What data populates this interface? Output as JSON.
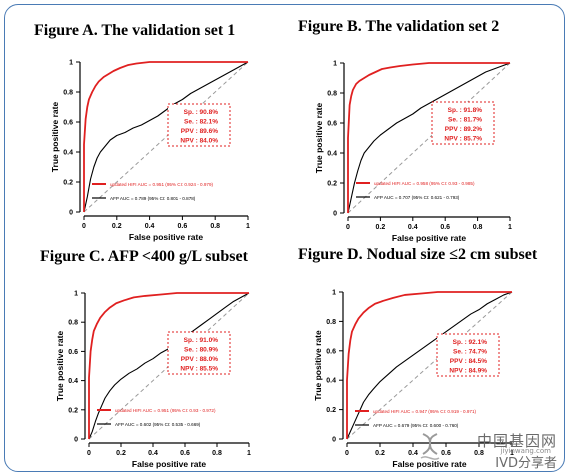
{
  "chart_data": [
    {
      "type": "line",
      "panel_title": "Figure A.  The validation set 1",
      "xlabel": "False positive rate",
      "ylabel": "True positive rate",
      "xlim": [
        0,
        1
      ],
      "ylim": [
        0,
        1
      ],
      "x_ticks": [
        "0",
        "0.2",
        "0.4",
        "0.6",
        "0.8",
        "1"
      ],
      "y_ticks": [
        "0",
        "0.2",
        "0.4",
        "0.6",
        "0.8",
        "1"
      ],
      "stats": [
        "Sp. : 90.8%",
        "Se. : 82.1%",
        "PPV : 89.6%",
        "NPV : 84.0%"
      ],
      "legend": [
        "updated HIFI AUC = 0.951 (95% CI: 0.924 - 0.979)",
        "AFP AUC = 0.789 (95% CI: 0.801 - 0.878)"
      ],
      "series": [
        {
          "name": "updated HIFI",
          "color": "#e02020",
          "x": [
            0,
            0,
            0.01,
            0.02,
            0.03,
            0.05,
            0.07,
            0.09,
            0.12,
            0.15,
            0.18,
            0.22,
            0.27,
            0.32,
            0.4,
            0.55,
            0.7,
            0.85,
            1
          ],
          "y": [
            0,
            0.45,
            0.62,
            0.7,
            0.75,
            0.8,
            0.84,
            0.87,
            0.9,
            0.92,
            0.94,
            0.96,
            0.98,
            0.99,
            1,
            1,
            1,
            1,
            1
          ]
        },
        {
          "name": "AFP",
          "color": "#000000",
          "x": [
            0,
            0.02,
            0.04,
            0.06,
            0.08,
            0.1,
            0.13,
            0.16,
            0.2,
            0.25,
            0.3,
            0.35,
            0.4,
            0.45,
            0.5,
            0.55,
            0.6,
            0.65,
            0.7,
            0.75,
            0.8,
            0.85,
            0.9,
            0.95,
            1
          ],
          "y": [
            0,
            0.1,
            0.22,
            0.3,
            0.36,
            0.4,
            0.44,
            0.48,
            0.51,
            0.53,
            0.56,
            0.58,
            0.61,
            0.64,
            0.68,
            0.72,
            0.75,
            0.79,
            0.82,
            0.85,
            0.88,
            0.91,
            0.94,
            0.97,
            1
          ]
        }
      ]
    },
    {
      "type": "line",
      "panel_title": "Figure B. The validation set 2",
      "xlabel": "False positive rate",
      "ylabel": "True positive rate",
      "xlim": [
        0,
        1
      ],
      "ylim": [
        0,
        1
      ],
      "x_ticks": [
        "0",
        "0.2",
        "0.4",
        "0.6",
        "0.8",
        "1"
      ],
      "y_ticks": [
        "0",
        "0.2",
        "0.4",
        "0.6",
        "0.8",
        "1"
      ],
      "stats": [
        "Sp. : 91.8%",
        "Se. : 81.7%",
        "PPV : 89.2%",
        "NPV : 85.7%"
      ],
      "legend": [
        "updated HIFI AUC = 0.958 (95% CI: 0.93 - 0.985)",
        "AFP AUC = 0.707 (95% CI: 0.621 - 0.793)"
      ],
      "series": [
        {
          "name": "updated HIFI",
          "color": "#e02020",
          "x": [
            0,
            0,
            0.01,
            0.02,
            0.03,
            0.05,
            0.07,
            0.1,
            0.13,
            0.17,
            0.21,
            0.26,
            0.32,
            0.4,
            0.5,
            0.6,
            0.75,
            0.88,
            1
          ],
          "y": [
            0,
            0.5,
            0.72,
            0.78,
            0.82,
            0.86,
            0.88,
            0.9,
            0.92,
            0.94,
            0.96,
            0.97,
            0.98,
            0.99,
            1,
            1,
            1,
            1,
            1
          ]
        },
        {
          "name": "AFP",
          "color": "#000000",
          "x": [
            0,
            0.02,
            0.04,
            0.06,
            0.08,
            0.1,
            0.13,
            0.16,
            0.2,
            0.25,
            0.3,
            0.35,
            0.4,
            0.45,
            0.5,
            0.55,
            0.6,
            0.65,
            0.7,
            0.75,
            0.8,
            0.85,
            0.9,
            0.95,
            1
          ],
          "y": [
            0,
            0.1,
            0.2,
            0.28,
            0.35,
            0.4,
            0.44,
            0.48,
            0.52,
            0.56,
            0.6,
            0.63,
            0.66,
            0.7,
            0.73,
            0.76,
            0.79,
            0.82,
            0.85,
            0.88,
            0.91,
            0.94,
            0.96,
            0.98,
            1
          ]
        }
      ]
    },
    {
      "type": "line",
      "panel_title": "Figure C. AFP <400 g/L subset",
      "xlabel": "False positive rate",
      "ylabel": "True positive rate",
      "xlim": [
        0,
        1
      ],
      "ylim": [
        0,
        1
      ],
      "x_ticks": [
        "0",
        "0.2",
        "0.4",
        "0.6",
        "0.8",
        "1"
      ],
      "y_ticks": [
        "0",
        "0.2",
        "0.4",
        "0.6",
        "0.8",
        "1"
      ],
      "stats": [
        "Sp. : 91.0%",
        "Se. : 80.9%",
        "PPV : 88.0%",
        "NPV : 85.5%"
      ],
      "legend": [
        "updated HIFI AUC = 0.951 (95% CI: 0.93 - 0.972)",
        "AFP AUC = 0.602 (95% CI: 0.535 - 0.669)"
      ],
      "series": [
        {
          "name": "updated HIFI",
          "color": "#e02020",
          "x": [
            0,
            0,
            0.01,
            0.02,
            0.03,
            0.05,
            0.07,
            0.1,
            0.13,
            0.17,
            0.22,
            0.28,
            0.35,
            0.45,
            0.55,
            0.7,
            0.85,
            1
          ],
          "y": [
            0,
            0.42,
            0.6,
            0.68,
            0.74,
            0.79,
            0.83,
            0.87,
            0.9,
            0.93,
            0.95,
            0.97,
            0.98,
            0.99,
            1,
            1,
            1,
            1
          ]
        },
        {
          "name": "AFP",
          "color": "#000000",
          "x": [
            0,
            0.02,
            0.04,
            0.06,
            0.08,
            0.1,
            0.13,
            0.16,
            0.2,
            0.25,
            0.3,
            0.35,
            0.4,
            0.45,
            0.5,
            0.55,
            0.6,
            0.65,
            0.7,
            0.75,
            0.8,
            0.85,
            0.9,
            0.95,
            1
          ],
          "y": [
            0,
            0.05,
            0.12,
            0.18,
            0.23,
            0.28,
            0.33,
            0.37,
            0.41,
            0.45,
            0.48,
            0.52,
            0.55,
            0.59,
            0.62,
            0.66,
            0.7,
            0.74,
            0.78,
            0.82,
            0.86,
            0.9,
            0.94,
            0.97,
            1
          ]
        }
      ]
    },
    {
      "type": "line",
      "panel_title": "Figure D. Nodual size ≤2 cm subset",
      "xlabel": "False positive rate",
      "ylabel": "True positive rate",
      "xlim": [
        0,
        1
      ],
      "ylim": [
        0,
        1
      ],
      "x_ticks": [
        "0",
        "0.2",
        "0.4",
        "0.6",
        "0.8",
        "1"
      ],
      "y_ticks": [
        "0",
        "0.2",
        "0.4",
        "0.6",
        "0.8",
        "1"
      ],
      "stats": [
        "Sp. : 92.1%",
        "Se. : 74.7%",
        "PPV : 84.5%",
        "NPV : 84.9%"
      ],
      "legend": [
        "updated HIFI AUC = 0.947 (95% CI: 0.919 - 0.971)",
        "AFP AUC = 0.679 (95% CI: 0.600 - 0.760)"
      ],
      "series": [
        {
          "name": "updated HIFI",
          "color": "#e02020",
          "x": [
            0,
            0,
            0.01,
            0.02,
            0.03,
            0.05,
            0.07,
            0.1,
            0.13,
            0.17,
            0.22,
            0.28,
            0.35,
            0.45,
            0.55,
            0.7,
            0.85,
            1
          ],
          "y": [
            0,
            0.4,
            0.58,
            0.67,
            0.73,
            0.78,
            0.82,
            0.86,
            0.89,
            0.92,
            0.94,
            0.96,
            0.98,
            0.99,
            1,
            1,
            1,
            1
          ]
        },
        {
          "name": "AFP",
          "color": "#000000",
          "x": [
            0,
            0.02,
            0.04,
            0.06,
            0.08,
            0.1,
            0.13,
            0.16,
            0.2,
            0.25,
            0.3,
            0.35,
            0.4,
            0.45,
            0.5,
            0.55,
            0.6,
            0.65,
            0.7,
            0.75,
            0.8,
            0.85,
            0.9,
            0.95,
            1
          ],
          "y": [
            0,
            0.05,
            0.1,
            0.15,
            0.2,
            0.25,
            0.3,
            0.34,
            0.39,
            0.44,
            0.49,
            0.53,
            0.57,
            0.61,
            0.65,
            0.69,
            0.73,
            0.77,
            0.81,
            0.85,
            0.88,
            0.92,
            0.95,
            0.98,
            1
          ]
        }
      ]
    }
  ],
  "watermark": {
    "line1": "中国基因网",
    "line2": "jiyinwang.com",
    "line3": "IVD分享者"
  }
}
